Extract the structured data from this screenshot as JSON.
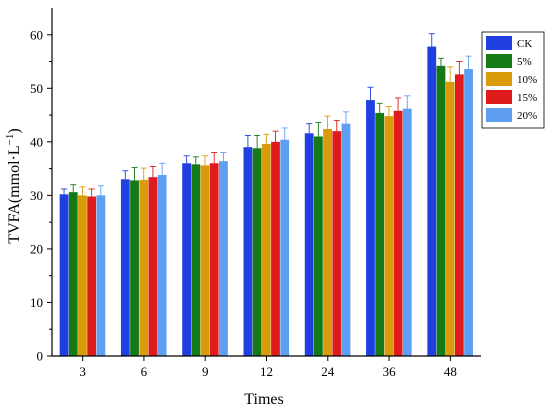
{
  "chart_data": {
    "type": "bar",
    "title": "",
    "xlabel": "Times",
    "ylabel": "TVFA(mmol·L",
    "ylabel_sup": "−1",
    "ylabel_close": ")",
    "ylim": [
      0,
      65
    ],
    "yticks": [
      0,
      10,
      20,
      30,
      40,
      50,
      60
    ],
    "grid": false,
    "legend_position": "top-right",
    "categories": [
      "3",
      "6",
      "9",
      "12",
      "24",
      "36",
      "48"
    ],
    "series": [
      {
        "name": "CK",
        "color": "#1f3fe0",
        "values": [
          30.2,
          33.0,
          36.0,
          39.0,
          41.6,
          47.8,
          57.8
        ],
        "errors": [
          1.0,
          1.6,
          1.4,
          2.2,
          1.8,
          2.4,
          2.4
        ]
      },
      {
        "name": "5%",
        "color": "#157a16",
        "values": [
          30.6,
          32.8,
          35.8,
          38.8,
          41.0,
          45.4,
          54.2
        ],
        "errors": [
          1.4,
          2.4,
          1.4,
          2.4,
          2.6,
          1.8,
          1.4
        ]
      },
      {
        "name": "10%",
        "color": "#d99a0b",
        "values": [
          30.0,
          32.9,
          35.6,
          39.6,
          42.4,
          44.8,
          51.2
        ],
        "errors": [
          1.6,
          2.2,
          1.8,
          1.8,
          2.4,
          1.8,
          2.8
        ]
      },
      {
        "name": "15%",
        "color": "#e01b1b",
        "values": [
          29.8,
          33.4,
          36.0,
          40.0,
          42.0,
          45.8,
          52.6
        ],
        "errors": [
          1.4,
          2.0,
          2.0,
          2.0,
          2.0,
          2.4,
          2.4
        ]
      },
      {
        "name": "20%",
        "color": "#5f9ff2",
        "values": [
          30.0,
          33.8,
          36.4,
          40.4,
          43.4,
          46.2,
          53.6
        ],
        "errors": [
          1.8,
          2.2,
          1.6,
          2.2,
          2.2,
          2.4,
          2.4
        ]
      }
    ]
  }
}
